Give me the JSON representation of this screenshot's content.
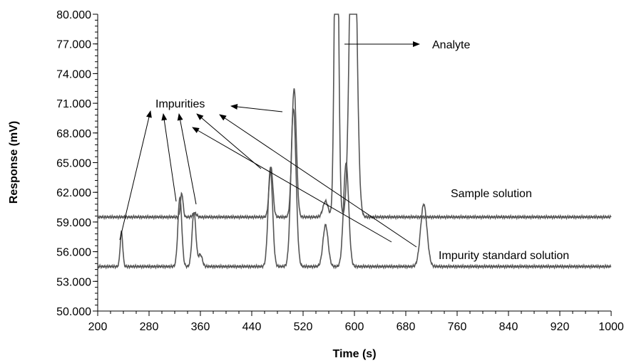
{
  "chart_data": {
    "type": "line",
    "title": "",
    "xlabel": "Time (s)",
    "ylabel": "Response (mV)",
    "xlim": [
      200,
      1000
    ],
    "ylim": [
      50.0,
      80.0
    ],
    "x_ticks": [
      "200",
      "280",
      "360",
      "440",
      "520",
      "600",
      "680",
      "760",
      "840",
      "920",
      "1000"
    ],
    "y_ticks": [
      "50.000",
      "53.000",
      "56.000",
      "59.000",
      "62.000",
      "65.000",
      "68.000",
      "71.000",
      "74.000",
      "77.000",
      "80.000"
    ],
    "grid": false,
    "legend": "none",
    "series": [
      {
        "name": "Sample solution",
        "color": "#555555",
        "baseline": 59.5,
        "peaks": [
          [
            331,
            2.4,
            2
          ],
          [
            351,
            0.4,
            3
          ],
          [
            470,
            5.0,
            3
          ],
          [
            506,
            13.0,
            3.5
          ],
          [
            555,
            1.6,
            4
          ],
          [
            572,
            40.0,
            3
          ],
          [
            598,
            40.0,
            5
          ]
        ]
      },
      {
        "name": "Impurity standard solution",
        "color": "#555555",
        "baseline": 54.5,
        "peaks": [
          [
            237,
            3.5,
            2
          ],
          [
            328,
            7.0,
            3
          ],
          [
            350,
            5.5,
            3
          ],
          [
            360,
            1.2,
            3
          ],
          [
            469,
            10.0,
            3.5
          ],
          [
            505,
            16.0,
            4
          ],
          [
            555,
            4.2,
            4
          ],
          [
            587,
            10.5,
            4
          ],
          [
            708,
            6.3,
            5
          ]
        ]
      }
    ],
    "annotations": [
      {
        "id": "impurities",
        "text": "Impurities"
      },
      {
        "id": "analyte",
        "text": "Analyte"
      },
      {
        "id": "sample",
        "text": "Sample solution"
      },
      {
        "id": "standard",
        "text": "Impurity standard solution"
      }
    ]
  }
}
